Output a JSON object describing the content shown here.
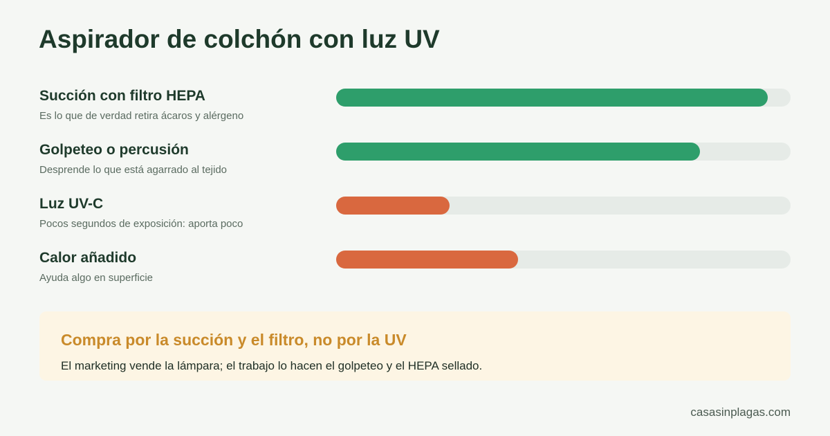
{
  "chart_data": {
    "type": "bar",
    "title": "Aspirador de colchón con luz UV",
    "categories": [
      "Succión con filtro HEPA",
      "Golpeteo o percusión",
      "Luz UV-C",
      "Calor añadido"
    ],
    "descriptions": [
      "Es lo que de verdad retira ácaros y alérgeno",
      "Desprende lo que está agarrado al tejido",
      "Pocos segundos de exposición: aporta poco",
      "Ayuda algo en superficie"
    ],
    "values": [
      95,
      80,
      25,
      40
    ],
    "colors": [
      "#2e9e6b",
      "#2e9e6b",
      "#d9683f",
      "#d9683f"
    ],
    "xlim": [
      0,
      100
    ]
  },
  "note": {
    "title": "Compra por la succión y el filtro, no por la UV",
    "text": "El marketing vende la lámpara; el trabajo lo hacen el golpeteo y el HEPA sellado."
  },
  "footer": "casasinplagas.com"
}
